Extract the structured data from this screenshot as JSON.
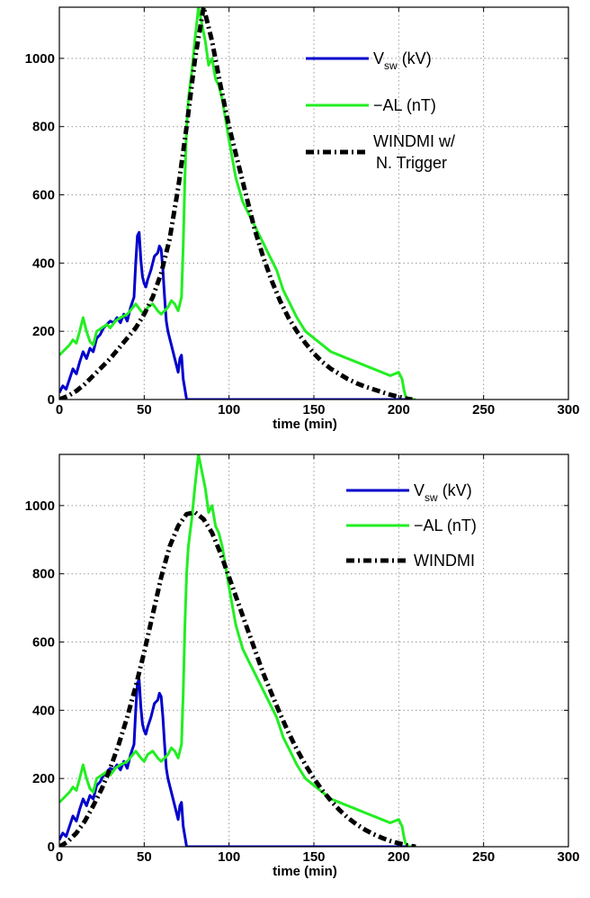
{
  "chart_data": [
    {
      "type": "line",
      "xlabel": "time (min)",
      "ylabel": "",
      "xlim": [
        0,
        300
      ],
      "ylim": [
        0,
        1150
      ],
      "x_ticks": [
        "0",
        "50",
        "100",
        "150",
        "200",
        "250",
        "300"
      ],
      "y_ticks": [
        "0",
        "200",
        "400",
        "600",
        "800",
        "1000"
      ],
      "grid": true,
      "legend_position": "top-right",
      "series": [
        {
          "name": "V",
          "name_sub": "sw",
          "name_suffix": " (kV)",
          "color": "#0000cc",
          "style": "solid",
          "x": [
            0,
            2,
            4,
            6,
            8,
            10,
            12,
            14,
            16,
            18,
            20,
            22,
            24,
            26,
            28,
            30,
            32,
            34,
            36,
            38,
            40,
            42,
            44,
            45,
            46,
            47,
            48,
            49,
            50,
            51,
            52,
            54,
            56,
            58,
            59,
            60,
            61,
            62,
            63,
            64,
            66,
            68,
            70,
            71,
            72,
            73,
            74,
            75,
            210
          ],
          "y": [
            20,
            40,
            30,
            60,
            90,
            75,
            110,
            140,
            120,
            150,
            140,
            180,
            190,
            210,
            220,
            230,
            225,
            240,
            225,
            250,
            230,
            270,
            300,
            400,
            480,
            490,
            410,
            360,
            340,
            330,
            350,
            380,
            420,
            430,
            450,
            440,
            380,
            300,
            230,
            200,
            160,
            120,
            80,
            120,
            130,
            60,
            30,
            0,
            0
          ]
        },
        {
          "name": "−AL (nT)",
          "color": "#22ee22",
          "style": "solid",
          "x": [
            0,
            3,
            6,
            8,
            10,
            12,
            14,
            16,
            18,
            20,
            22,
            25,
            28,
            30,
            33,
            36,
            40,
            45,
            48,
            50,
            52,
            55,
            58,
            60,
            62,
            64,
            66,
            68,
            70,
            72,
            73,
            74,
            75,
            76,
            78,
            80,
            82,
            84,
            86,
            88,
            90,
            92,
            94,
            96,
            98,
            100,
            104,
            108,
            112,
            116,
            120,
            124,
            128,
            132,
            136,
            140,
            145,
            150,
            155,
            160,
            165,
            170,
            175,
            180,
            185,
            190,
            195,
            200,
            202,
            203,
            204,
            206,
            210
          ],
          "y": [
            130,
            145,
            160,
            175,
            165,
            200,
            240,
            200,
            170,
            160,
            200,
            210,
            220,
            210,
            230,
            240,
            250,
            280,
            260,
            250,
            270,
            280,
            260,
            250,
            260,
            270,
            290,
            280,
            260,
            300,
            450,
            650,
            800,
            880,
            960,
            1060,
            1150,
            1100,
            1050,
            980,
            1000,
            940,
            920,
            880,
            820,
            760,
            650,
            580,
            540,
            500,
            460,
            420,
            380,
            320,
            280,
            240,
            200,
            180,
            160,
            140,
            130,
            120,
            110,
            100,
            90,
            80,
            70,
            80,
            60,
            30,
            10,
            0,
            0
          ]
        },
        {
          "name": "WINDMI w/",
          "name_line2": "N. Trigger",
          "color": "#000000",
          "style": "dashdot",
          "x": [
            0,
            5,
            10,
            15,
            20,
            25,
            30,
            35,
            40,
            45,
            50,
            55,
            60,
            65,
            70,
            75,
            80,
            85,
            90,
            95,
            100,
            105,
            110,
            115,
            120,
            125,
            130,
            135,
            140,
            145,
            150,
            155,
            160,
            165,
            170,
            175,
            180,
            185,
            190,
            195,
            200,
            205,
            208
          ],
          "y": [
            0,
            10,
            25,
            45,
            70,
            95,
            120,
            150,
            180,
            210,
            250,
            300,
            370,
            470,
            620,
            800,
            1000,
            1150,
            1050,
            920,
            800,
            700,
            600,
            500,
            420,
            350,
            290,
            240,
            200,
            165,
            135,
            110,
            90,
            75,
            60,
            48,
            38,
            30,
            22,
            14,
            8,
            2,
            0
          ]
        }
      ]
    },
    {
      "type": "line",
      "xlabel": "time (min)",
      "ylabel": "",
      "xlim": [
        0,
        300
      ],
      "ylim": [
        0,
        1150
      ],
      "x_ticks": [
        "0",
        "50",
        "100",
        "150",
        "200",
        "250",
        "300"
      ],
      "y_ticks": [
        "0",
        "200",
        "400",
        "600",
        "800",
        "1000"
      ],
      "grid": true,
      "legend_position": "top-right",
      "series": [
        {
          "name": "V",
          "name_sub": "sw",
          "name_suffix": " (kV)",
          "color": "#0000cc",
          "style": "solid",
          "x": [
            0,
            2,
            4,
            6,
            8,
            10,
            12,
            14,
            16,
            18,
            20,
            22,
            24,
            26,
            28,
            30,
            32,
            34,
            36,
            38,
            40,
            42,
            44,
            45,
            46,
            47,
            48,
            49,
            50,
            51,
            52,
            54,
            56,
            58,
            59,
            60,
            61,
            62,
            63,
            64,
            66,
            68,
            70,
            71,
            72,
            73,
            74,
            75,
            210
          ],
          "y": [
            20,
            40,
            30,
            60,
            90,
            75,
            110,
            140,
            120,
            150,
            140,
            180,
            190,
            210,
            220,
            230,
            225,
            240,
            225,
            250,
            230,
            270,
            300,
            400,
            480,
            490,
            410,
            360,
            340,
            330,
            350,
            380,
            420,
            430,
            450,
            440,
            380,
            300,
            230,
            200,
            160,
            120,
            80,
            120,
            130,
            60,
            30,
            0,
            0
          ]
        },
        {
          "name": "−AL (nT)",
          "color": "#22ee22",
          "style": "solid",
          "x": [
            0,
            3,
            6,
            8,
            10,
            12,
            14,
            16,
            18,
            20,
            22,
            25,
            28,
            30,
            33,
            36,
            40,
            45,
            48,
            50,
            52,
            55,
            58,
            60,
            62,
            64,
            66,
            68,
            70,
            72,
            73,
            74,
            75,
            76,
            78,
            80,
            82,
            84,
            86,
            88,
            90,
            92,
            94,
            96,
            98,
            100,
            104,
            108,
            112,
            116,
            120,
            124,
            128,
            132,
            136,
            140,
            145,
            150,
            155,
            160,
            165,
            170,
            175,
            180,
            185,
            190,
            195,
            200,
            202,
            203,
            204,
            206,
            210
          ],
          "y": [
            130,
            145,
            160,
            175,
            165,
            200,
            240,
            200,
            170,
            160,
            200,
            210,
            220,
            210,
            230,
            240,
            250,
            280,
            260,
            250,
            270,
            280,
            260,
            250,
            260,
            270,
            290,
            280,
            260,
            300,
            450,
            650,
            800,
            880,
            960,
            1060,
            1150,
            1100,
            1050,
            980,
            1000,
            940,
            920,
            880,
            820,
            760,
            650,
            580,
            540,
            500,
            460,
            420,
            380,
            320,
            280,
            240,
            200,
            180,
            160,
            140,
            130,
            120,
            110,
            100,
            90,
            80,
            70,
            80,
            60,
            30,
            10,
            0,
            0
          ]
        },
        {
          "name": "WINDMI",
          "color": "#000000",
          "style": "dashdot",
          "x": [
            0,
            5,
            10,
            15,
            20,
            25,
            30,
            35,
            40,
            45,
            50,
            55,
            60,
            65,
            70,
            75,
            80,
            85,
            90,
            95,
            100,
            105,
            110,
            115,
            120,
            125,
            130,
            135,
            140,
            145,
            150,
            155,
            160,
            165,
            170,
            175,
            180,
            185,
            190,
            195,
            200,
            205,
            210
          ],
          "y": [
            0,
            15,
            40,
            75,
            120,
            170,
            230,
            300,
            380,
            470,
            570,
            680,
            790,
            880,
            940,
            975,
            980,
            960,
            920,
            860,
            790,
            720,
            650,
            580,
            510,
            450,
            390,
            335,
            285,
            240,
            200,
            165,
            135,
            108,
            85,
            66,
            50,
            37,
            26,
            17,
            10,
            4,
            0
          ]
        }
      ]
    }
  ]
}
